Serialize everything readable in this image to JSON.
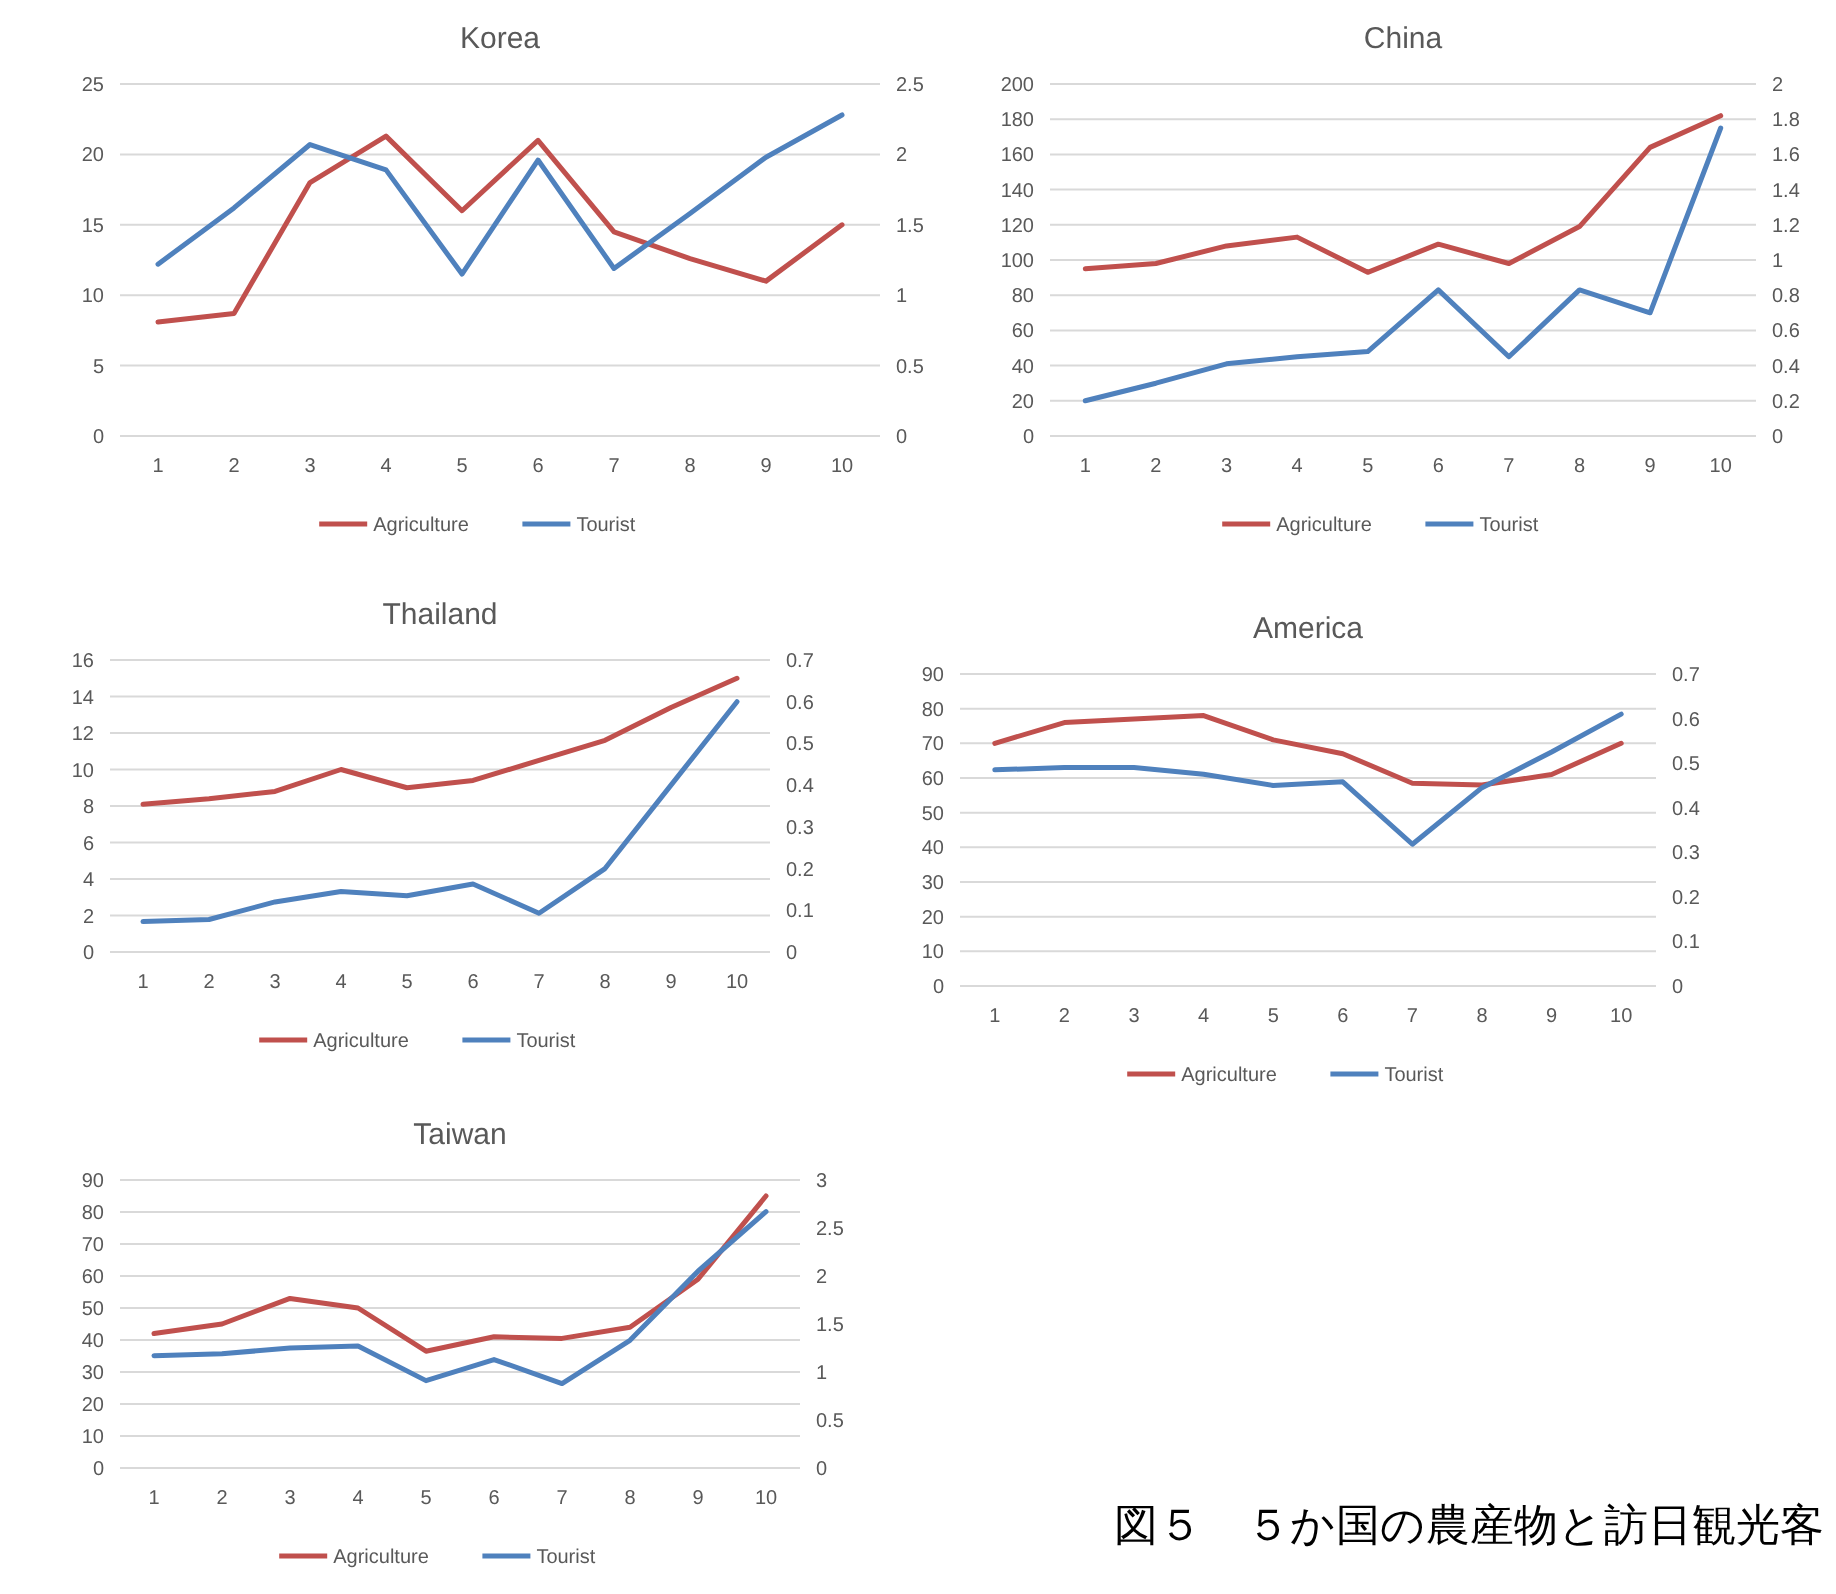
{
  "chart_data": [
    {
      "type": "line",
      "title": "Korea",
      "categories": [
        "1",
        "2",
        "3",
        "4",
        "5",
        "6",
        "7",
        "8",
        "9",
        "10"
      ],
      "ylim": [
        0,
        25
      ],
      "yticks": [
        0,
        5,
        10,
        15,
        20,
        25
      ],
      "y2lim": [
        0,
        2.5
      ],
      "y2ticks": [
        0,
        0.5,
        1,
        1.5,
        2,
        2.5
      ],
      "grid": "y",
      "legend": "bottom",
      "series": [
        {
          "name": "Agriculture",
          "color": "#c0504d",
          "values": [
            8.1,
            8.7,
            18,
            21.3,
            16,
            21,
            14.5,
            12.6,
            11,
            15
          ]
        },
        {
          "name": "Tourist",
          "color": "#4f81bd",
          "axis": "y2",
          "values": [
            1.22,
            1.62,
            2.07,
            1.89,
            1.15,
            1.96,
            1.19,
            1.58,
            1.98,
            2.28
          ]
        }
      ]
    },
    {
      "type": "line",
      "title": "China",
      "categories": [
        "1",
        "2",
        "3",
        "4",
        "5",
        "6",
        "7",
        "8",
        "9",
        "10"
      ],
      "ylim": [
        0,
        200
      ],
      "yticks": [
        0,
        20,
        40,
        60,
        80,
        100,
        120,
        140,
        160,
        180,
        200
      ],
      "y2lim": [
        0,
        2
      ],
      "y2ticks": [
        0,
        0.2,
        0.4,
        0.6,
        0.8,
        1,
        1.2,
        1.4,
        1.6,
        1.8,
        2
      ],
      "grid": "y",
      "legend": "bottom",
      "series": [
        {
          "name": "Agriculture",
          "color": "#c0504d",
          "values": [
            95,
            98,
            108,
            113,
            93,
            109,
            98,
            119,
            164,
            182
          ]
        },
        {
          "name": "Tourist",
          "color": "#4f81bd",
          "axis": "y2",
          "values": [
            0.2,
            0.3,
            0.41,
            0.45,
            0.48,
            0.83,
            0.45,
            0.83,
            0.7,
            1.75
          ]
        }
      ]
    },
    {
      "type": "line",
      "title": "Thailand",
      "categories": [
        "1",
        "2",
        "3",
        "4",
        "5",
        "6",
        "7",
        "8",
        "9",
        "10"
      ],
      "ylim": [
        0,
        16
      ],
      "yticks": [
        0,
        2,
        4,
        6,
        8,
        10,
        12,
        14,
        16
      ],
      "y2lim": [
        0,
        0.7
      ],
      "y2ticks": [
        0,
        0.1,
        0.2,
        0.3,
        0.4,
        0.5,
        0.6,
        0.7
      ],
      "grid": "y",
      "legend": "bottom",
      "series": [
        {
          "name": "Agriculture",
          "color": "#c0504d",
          "values": [
            8.1,
            8.4,
            8.8,
            10,
            9,
            9.4,
            10.5,
            11.6,
            13.4,
            15
          ]
        },
        {
          "name": "Tourist",
          "color": "#4f81bd",
          "axis": "y2",
          "values": [
            0.073,
            0.078,
            0.12,
            0.145,
            0.135,
            0.163,
            0.093,
            0.2,
            0.4,
            0.6
          ]
        }
      ]
    },
    {
      "type": "line",
      "title": "America",
      "categories": [
        "1",
        "2",
        "3",
        "4",
        "5",
        "6",
        "7",
        "8",
        "9",
        "10"
      ],
      "ylim": [
        0,
        90
      ],
      "yticks": [
        0,
        10,
        20,
        30,
        40,
        50,
        60,
        70,
        80,
        90
      ],
      "y2lim": [
        0,
        0.7
      ],
      "y2ticks": [
        0,
        0.1,
        0.2,
        0.3,
        0.4,
        0.5,
        0.6,
        0.7
      ],
      "grid": "y",
      "legend": "bottom",
      "series": [
        {
          "name": "Agriculture",
          "color": "#c0504d",
          "values": [
            70,
            76,
            77,
            78,
            71,
            67,
            58.5,
            58,
            61,
            70
          ]
        },
        {
          "name": "Tourist",
          "color": "#4f81bd",
          "axis": "y2",
          "values": [
            0.485,
            0.49,
            0.49,
            0.475,
            0.45,
            0.458,
            0.318,
            0.445,
            0.525,
            0.61
          ]
        }
      ]
    },
    {
      "type": "line",
      "title": "Taiwan",
      "categories": [
        "1",
        "2",
        "3",
        "4",
        "5",
        "6",
        "7",
        "8",
        "9",
        "10"
      ],
      "ylim": [
        0,
        90
      ],
      "yticks": [
        0,
        10,
        20,
        30,
        40,
        50,
        60,
        70,
        80,
        90
      ],
      "y2lim": [
        0,
        3
      ],
      "y2ticks": [
        0,
        0.5,
        1,
        1.5,
        2,
        2.5,
        3
      ],
      "grid": "y",
      "legend": "bottom",
      "annotations": [
        "図５　５か国の農産物と訪日観光客"
      ],
      "series": [
        {
          "name": "Agriculture",
          "color": "#c0504d",
          "values": [
            42,
            45,
            53,
            50,
            36.5,
            41,
            40.5,
            44,
            59,
            85
          ]
        },
        {
          "name": "Tourist",
          "color": "#4f81bd",
          "axis": "y2",
          "values": [
            1.17,
            1.19,
            1.25,
            1.27,
            0.91,
            1.13,
            0.88,
            1.33,
            2.05,
            2.67
          ]
        }
      ]
    }
  ]
}
